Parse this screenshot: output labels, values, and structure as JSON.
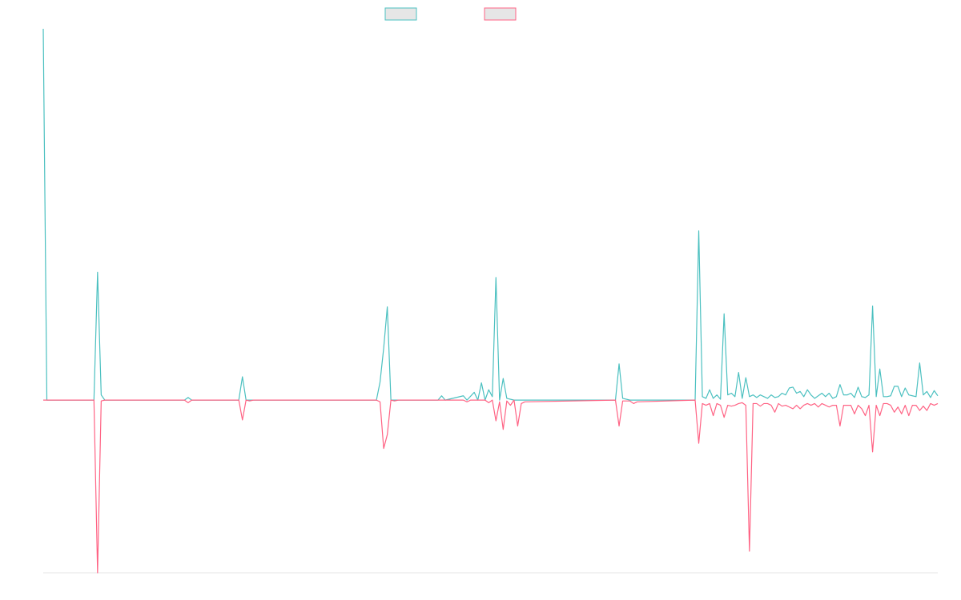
{
  "chart_data": {
    "type": "line",
    "title": "",
    "xlabel": "",
    "ylabel": "",
    "grid": false,
    "legend_position": "top-center",
    "colors": {
      "series_a": "#4bc0c0",
      "series_b": "#ff6384",
      "legend_fill": "#e6e6e6",
      "axis": "#e5e5e5"
    },
    "ylim": [
      -10,
      21.5
    ],
    "series": [
      {
        "key": "series_a",
        "points": [
          [
            0,
            21.5
          ],
          [
            1,
            0
          ],
          [
            14,
            0
          ],
          [
            15,
            7.4
          ],
          [
            16,
            0.3
          ],
          [
            17,
            0
          ],
          [
            39,
            0
          ],
          [
            40,
            0.15
          ],
          [
            41,
            0
          ],
          [
            54,
            0
          ],
          [
            55,
            1.35
          ],
          [
            56,
            0
          ],
          [
            92,
            0
          ],
          [
            93,
            1.05
          ],
          [
            94,
            3.0
          ],
          [
            95,
            5.4
          ],
          [
            96,
            0
          ],
          [
            109,
            0
          ],
          [
            110,
            0.25
          ],
          [
            111,
            0
          ],
          [
            116,
            0.25
          ],
          [
            117,
            0
          ],
          [
            119,
            0.45
          ],
          [
            120,
            0
          ],
          [
            121,
            1.0
          ],
          [
            122,
            0
          ],
          [
            123,
            0.6
          ],
          [
            124,
            0.2
          ],
          [
            125,
            7.1
          ],
          [
            126,
            0
          ],
          [
            127,
            1.25
          ],
          [
            128,
            0.1
          ],
          [
            130,
            0
          ],
          [
            158,
            0
          ],
          [
            159,
            2.1
          ],
          [
            160,
            0.1
          ],
          [
            162,
            0
          ],
          [
            180,
            0
          ],
          [
            181,
            9.8
          ],
          [
            182,
            0.2
          ],
          [
            183,
            0.1
          ],
          [
            184,
            0.6
          ],
          [
            185,
            0.1
          ],
          [
            186,
            0.3
          ],
          [
            187,
            0.05
          ],
          [
            188,
            5.0
          ],
          [
            189,
            0.3
          ],
          [
            190,
            0.4
          ],
          [
            191,
            0.2
          ],
          [
            192,
            1.6
          ],
          [
            193,
            0.1
          ],
          [
            194,
            1.3
          ],
          [
            195,
            0.2
          ],
          [
            196,
            0.3
          ],
          [
            197,
            0.15
          ],
          [
            198,
            0.3
          ],
          [
            199,
            0.2
          ],
          [
            200,
            0.1
          ],
          [
            201,
            0.3
          ],
          [
            202,
            0.15
          ],
          [
            203,
            0.2
          ],
          [
            204,
            0.4
          ],
          [
            205,
            0.3
          ],
          [
            206,
            0.7
          ],
          [
            207,
            0.75
          ],
          [
            208,
            0.4
          ],
          [
            209,
            0.5
          ],
          [
            210,
            0.2
          ],
          [
            211,
            0.6
          ],
          [
            212,
            0.3
          ],
          [
            213,
            0.1
          ],
          [
            214,
            0.25
          ],
          [
            215,
            0.4
          ],
          [
            216,
            0.2
          ],
          [
            217,
            0.4
          ],
          [
            218,
            0.1
          ],
          [
            219,
            0.2
          ],
          [
            220,
            0.9
          ],
          [
            221,
            0.3
          ],
          [
            222,
            0.3
          ],
          [
            223,
            0.4
          ],
          [
            224,
            0.15
          ],
          [
            225,
            0.75
          ],
          [
            226,
            0.2
          ],
          [
            227,
            0.15
          ],
          [
            228,
            0.3
          ],
          [
            229,
            5.45
          ],
          [
            230,
            0.2
          ],
          [
            231,
            1.8
          ],
          [
            232,
            0.2
          ],
          [
            233,
            0.2
          ],
          [
            234,
            0.25
          ],
          [
            235,
            0.8
          ],
          [
            236,
            0.8
          ],
          [
            237,
            0.2
          ],
          [
            238,
            0.7
          ],
          [
            239,
            0.3
          ],
          [
            240,
            0.25
          ],
          [
            241,
            0.2
          ],
          [
            242,
            2.15
          ],
          [
            243,
            0.3
          ],
          [
            244,
            0.5
          ],
          [
            245,
            0.15
          ],
          [
            246,
            0.55
          ],
          [
            247,
            0.25
          ]
        ]
      },
      {
        "key": "series_b",
        "points": [
          [
            0,
            0
          ],
          [
            14,
            0
          ],
          [
            15,
            -10
          ],
          [
            16,
            -0.05
          ],
          [
            17,
            0
          ],
          [
            39,
            0
          ],
          [
            40,
            -0.15
          ],
          [
            41,
            0
          ],
          [
            54,
            0
          ],
          [
            55,
            -1.15
          ],
          [
            56,
            0
          ],
          [
            57,
            -0.05
          ],
          [
            58,
            0
          ],
          [
            92,
            0
          ],
          [
            93,
            -0.1
          ],
          [
            94,
            -2.8
          ],
          [
            95,
            -2.0
          ],
          [
            96,
            0
          ],
          [
            97,
            -0.05
          ],
          [
            98,
            0
          ],
          [
            116,
            0
          ],
          [
            117,
            -0.1
          ],
          [
            118,
            0
          ],
          [
            122,
            0
          ],
          [
            123,
            -0.15
          ],
          [
            124,
            0
          ],
          [
            125,
            -1.2
          ],
          [
            126,
            -0.1
          ],
          [
            127,
            -1.7
          ],
          [
            128,
            -0.05
          ],
          [
            129,
            -0.3
          ],
          [
            130,
            0
          ],
          [
            131,
            -1.5
          ],
          [
            132,
            -0.2
          ],
          [
            133,
            -0.1
          ],
          [
            158,
            0
          ],
          [
            159,
            -1.5
          ],
          [
            160,
            -0.05
          ],
          [
            162,
            -0.05
          ],
          [
            163,
            -0.2
          ],
          [
            164,
            -0.1
          ],
          [
            180,
            0
          ],
          [
            181,
            -2.5
          ],
          [
            182,
            -0.2
          ],
          [
            183,
            -0.3
          ],
          [
            184,
            -0.2
          ],
          [
            185,
            -0.9
          ],
          [
            186,
            -0.2
          ],
          [
            187,
            -0.3
          ],
          [
            188,
            -1.0
          ],
          [
            189,
            -0.3
          ],
          [
            190,
            -0.35
          ],
          [
            191,
            -0.3
          ],
          [
            192,
            -0.2
          ],
          [
            193,
            -0.15
          ],
          [
            194,
            -0.3
          ],
          [
            195,
            -8.75
          ],
          [
            196,
            -0.2
          ],
          [
            197,
            -0.2
          ],
          [
            198,
            -0.35
          ],
          [
            199,
            -0.2
          ],
          [
            200,
            -0.2
          ],
          [
            201,
            -0.3
          ],
          [
            202,
            -0.7
          ],
          [
            203,
            -0.2
          ],
          [
            204,
            -0.35
          ],
          [
            205,
            -0.3
          ],
          [
            206,
            -0.4
          ],
          [
            207,
            -0.5
          ],
          [
            208,
            -0.3
          ],
          [
            209,
            -0.5
          ],
          [
            210,
            -0.3
          ],
          [
            211,
            -0.2
          ],
          [
            212,
            -0.3
          ],
          [
            213,
            -0.2
          ],
          [
            214,
            -0.4
          ],
          [
            215,
            -0.2
          ],
          [
            216,
            -0.3
          ],
          [
            217,
            -0.4
          ],
          [
            218,
            -0.3
          ],
          [
            219,
            -0.3
          ],
          [
            220,
            -1.5
          ],
          [
            221,
            -0.3
          ],
          [
            222,
            -0.3
          ],
          [
            223,
            -0.3
          ],
          [
            224,
            -0.8
          ],
          [
            225,
            -0.3
          ],
          [
            226,
            -0.5
          ],
          [
            227,
            -0.9
          ],
          [
            228,
            -0.3
          ],
          [
            229,
            -3.0
          ],
          [
            230,
            -0.3
          ],
          [
            231,
            -0.9
          ],
          [
            232,
            -0.2
          ],
          [
            233,
            -0.2
          ],
          [
            234,
            -0.3
          ],
          [
            235,
            -0.7
          ],
          [
            236,
            -0.4
          ],
          [
            237,
            -0.8
          ],
          [
            238,
            -0.3
          ],
          [
            239,
            -0.9
          ],
          [
            240,
            -0.3
          ],
          [
            241,
            -0.3
          ],
          [
            242,
            -0.6
          ],
          [
            243,
            -0.35
          ],
          [
            244,
            -0.6
          ],
          [
            245,
            -0.2
          ],
          [
            246,
            -0.3
          ],
          [
            247,
            -0.2
          ]
        ]
      }
    ],
    "xlim": [
      0,
      247
    ]
  }
}
